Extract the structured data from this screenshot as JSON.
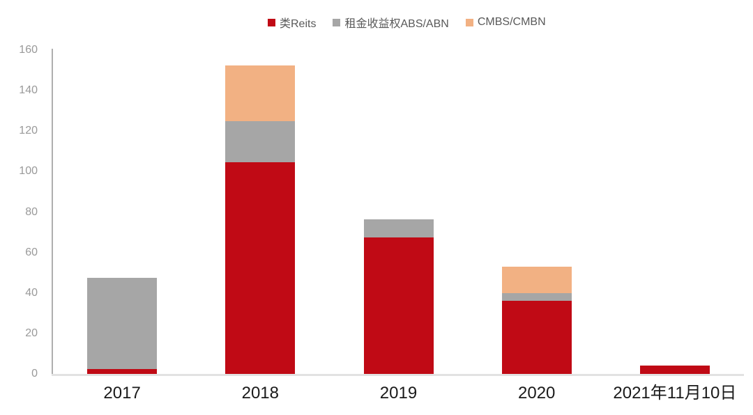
{
  "chart_data": {
    "type": "bar",
    "stacked": true,
    "title": "",
    "xlabel": "",
    "ylabel": "",
    "categories": [
      "2017",
      "2018",
      "2019",
      "2020",
      "2021年11月10日"
    ],
    "series": [
      {
        "name": "类Reits",
        "slug": "reits",
        "color": "#c00a15",
        "values": [
          2.5,
          104.5,
          67.5,
          36,
          4
        ]
      },
      {
        "name": "租金收益权ABS/ABN",
        "slug": "rental-abs-abn",
        "color": "#a6a6a6",
        "values": [
          45,
          20.5,
          9,
          4,
          0
        ]
      },
      {
        "name": "CMBS/CMBN",
        "slug": "cmbs-cmbn",
        "color": "#f2b183",
        "values": [
          0,
          27.5,
          0,
          13,
          0
        ]
      }
    ],
    "ylim": [
      0,
      160
    ],
    "yticks": [
      0,
      20,
      40,
      60,
      80,
      100,
      120,
      140,
      160
    ],
    "grid": false,
    "legend_position": "top"
  },
  "style": {
    "series_colors": {
      "reits": "#c00a15",
      "rental-abs-abn": "#a6a6a6",
      "cmbs-cmbn": "#f2b183"
    },
    "axis_line_color": "#aeaeae",
    "baseline_color": "#e2e2e2",
    "ytick_label_color": "#999999",
    "xtick_label_color": "#1a1a1a",
    "legend_text_color": "#595959",
    "background": "#ffffff"
  }
}
